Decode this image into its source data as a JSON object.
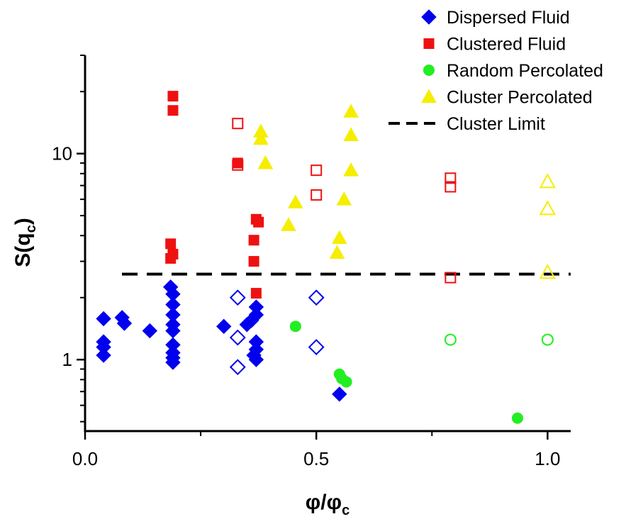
{
  "chart_data": {
    "type": "scatter",
    "xlabel": "φ/φ",
    "xlabel_sub": "c",
    "ylabel": "S(q",
    "ylabel_sub": "c",
    "ylabel_close": ")",
    "xlim": [
      0.0,
      1.05
    ],
    "ylim": [
      0.45,
      30
    ],
    "yscale": "log",
    "grid": false,
    "legend_position": "top-right",
    "x_ticks": [
      {
        "value": 0.0,
        "label": "0.0"
      },
      {
        "value": 0.5,
        "label": "0.5"
      },
      {
        "value": 1.0,
        "label": "1.0"
      }
    ],
    "x_minor_ticks": [
      0.25,
      0.75
    ],
    "y_ticks": [
      {
        "value": 1,
        "label": "1"
      },
      {
        "value": 10,
        "label": "10"
      }
    ],
    "y_minor_ticks": [
      0.5,
      0.6,
      0.7,
      0.8,
      0.9,
      2,
      3,
      4,
      5,
      6,
      7,
      8,
      9,
      20,
      30
    ],
    "reference_line": {
      "name": "Cluster Limit",
      "y": 2.6,
      "style": "dashed",
      "color": "#000000"
    },
    "series": [
      {
        "name": "Dispersed Fluid",
        "marker": "diamond",
        "color": "#0000ee",
        "points": [
          {
            "x": 0.04,
            "y": 1.58,
            "filled": true
          },
          {
            "x": 0.04,
            "y": 1.22,
            "filled": true
          },
          {
            "x": 0.04,
            "y": 1.15,
            "filled": true
          },
          {
            "x": 0.04,
            "y": 1.05,
            "filled": true
          },
          {
            "x": 0.08,
            "y": 1.6,
            "filled": true
          },
          {
            "x": 0.085,
            "y": 1.5,
            "filled": true
          },
          {
            "x": 0.14,
            "y": 1.38,
            "filled": true
          },
          {
            "x": 0.185,
            "y": 2.25,
            "filled": true
          },
          {
            "x": 0.19,
            "y": 2.08,
            "filled": true
          },
          {
            "x": 0.19,
            "y": 1.85,
            "filled": true
          },
          {
            "x": 0.19,
            "y": 1.65,
            "filled": true
          },
          {
            "x": 0.19,
            "y": 1.48,
            "filled": true
          },
          {
            "x": 0.19,
            "y": 1.38,
            "filled": true
          },
          {
            "x": 0.19,
            "y": 1.18,
            "filled": true
          },
          {
            "x": 0.19,
            "y": 1.08,
            "filled": true
          },
          {
            "x": 0.19,
            "y": 1.02,
            "filled": true
          },
          {
            "x": 0.19,
            "y": 0.97,
            "filled": true
          },
          {
            "x": 0.3,
            "y": 1.45,
            "filled": true
          },
          {
            "x": 0.35,
            "y": 1.48,
            "filled": true
          },
          {
            "x": 0.36,
            "y": 1.55,
            "filled": true
          },
          {
            "x": 0.37,
            "y": 1.8,
            "filled": true
          },
          {
            "x": 0.37,
            "y": 1.65,
            "filled": true
          },
          {
            "x": 0.37,
            "y": 1.22,
            "filled": true
          },
          {
            "x": 0.37,
            "y": 1.12,
            "filled": true
          },
          {
            "x": 0.365,
            "y": 1.05,
            "filled": true
          },
          {
            "x": 0.37,
            "y": 1.0,
            "filled": true
          },
          {
            "x": 0.55,
            "y": 0.68,
            "filled": true
          },
          {
            "x": 0.33,
            "y": 2.0,
            "filled": false
          },
          {
            "x": 0.33,
            "y": 1.28,
            "filled": false
          },
          {
            "x": 0.33,
            "y": 0.92,
            "filled": false
          },
          {
            "x": 0.5,
            "y": 2.0,
            "filled": false
          },
          {
            "x": 0.5,
            "y": 1.15,
            "filled": false
          }
        ]
      },
      {
        "name": "Clustered Fluid",
        "marker": "square",
        "color": "#ee1111",
        "points": [
          {
            "x": 0.19,
            "y": 19.0,
            "filled": true
          },
          {
            "x": 0.19,
            "y": 16.2,
            "filled": true
          },
          {
            "x": 0.185,
            "y": 3.65,
            "filled": true
          },
          {
            "x": 0.19,
            "y": 3.25,
            "filled": true
          },
          {
            "x": 0.185,
            "y": 3.1,
            "filled": true
          },
          {
            "x": 0.33,
            "y": 9.0,
            "filled": true
          },
          {
            "x": 0.37,
            "y": 4.8,
            "filled": true
          },
          {
            "x": 0.375,
            "y": 4.65,
            "filled": true
          },
          {
            "x": 0.365,
            "y": 3.8,
            "filled": true
          },
          {
            "x": 0.365,
            "y": 3.0,
            "filled": true
          },
          {
            "x": 0.37,
            "y": 2.1,
            "filled": true
          },
          {
            "x": 0.33,
            "y": 14.0,
            "filled": false
          },
          {
            "x": 0.33,
            "y": 8.8,
            "filled": false
          },
          {
            "x": 0.5,
            "y": 8.3,
            "filled": false
          },
          {
            "x": 0.5,
            "y": 6.3,
            "filled": false
          },
          {
            "x": 0.79,
            "y": 7.6,
            "filled": false
          },
          {
            "x": 0.79,
            "y": 6.9,
            "filled": false
          },
          {
            "x": 0.79,
            "y": 2.5,
            "filled": false
          }
        ]
      },
      {
        "name": "Random Percolated",
        "marker": "circle",
        "color": "#22ee22",
        "points": [
          {
            "x": 0.455,
            "y": 1.45,
            "filled": true
          },
          {
            "x": 0.55,
            "y": 0.85,
            "filled": true
          },
          {
            "x": 0.555,
            "y": 0.81,
            "filled": true
          },
          {
            "x": 0.565,
            "y": 0.78,
            "filled": true
          },
          {
            "x": 0.935,
            "y": 0.52,
            "filled": true
          },
          {
            "x": 0.79,
            "y": 1.25,
            "filled": false
          },
          {
            "x": 1.0,
            "y": 1.25,
            "filled": false
          }
        ]
      },
      {
        "name": "Cluster Percolated",
        "marker": "triangle",
        "color": "#f5ee00",
        "points": [
          {
            "x": 0.38,
            "y": 12.8,
            "filled": true
          },
          {
            "x": 0.38,
            "y": 11.8,
            "filled": true
          },
          {
            "x": 0.39,
            "y": 9.0,
            "filled": true
          },
          {
            "x": 0.44,
            "y": 4.5,
            "filled": true
          },
          {
            "x": 0.455,
            "y": 5.8,
            "filled": true
          },
          {
            "x": 0.575,
            "y": 16.0,
            "filled": true
          },
          {
            "x": 0.575,
            "y": 12.3,
            "filled": true
          },
          {
            "x": 0.575,
            "y": 8.3,
            "filled": true
          },
          {
            "x": 0.56,
            "y": 6.0,
            "filled": true
          },
          {
            "x": 0.55,
            "y": 3.9,
            "filled": true
          },
          {
            "x": 0.545,
            "y": 3.3,
            "filled": true
          },
          {
            "x": 1.0,
            "y": 7.3,
            "filled": false
          },
          {
            "x": 1.0,
            "y": 5.4,
            "filled": false
          },
          {
            "x": 1.0,
            "y": 2.65,
            "filled": false
          }
        ]
      }
    ]
  }
}
